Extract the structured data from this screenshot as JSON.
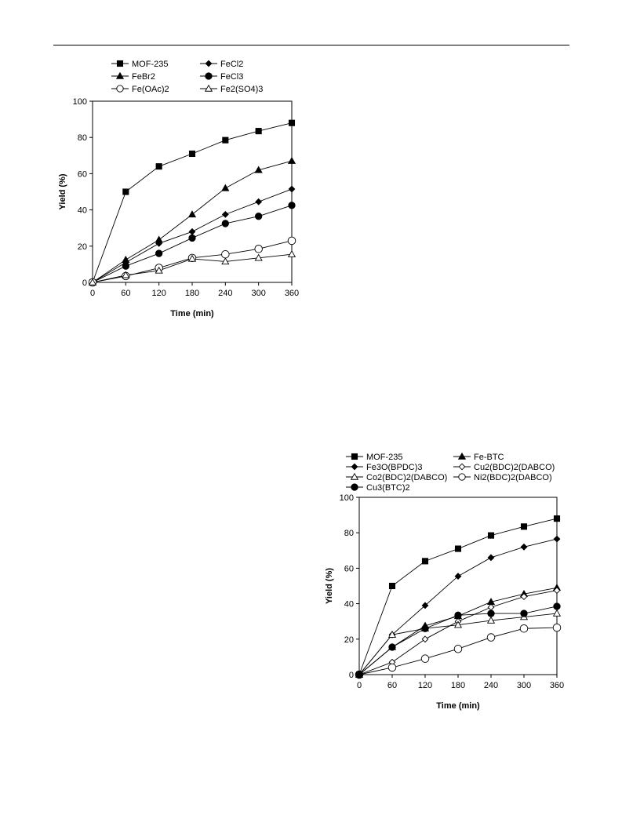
{
  "chart_data": [
    {
      "type": "line",
      "xlabel": "Time (min)",
      "ylabel": "Yield (%)",
      "xlim": [
        0,
        360
      ],
      "ylim": [
        0,
        100
      ],
      "xticks": [
        0,
        60,
        120,
        180,
        240,
        300,
        360
      ],
      "yticks": [
        0,
        20,
        40,
        60,
        80,
        100
      ],
      "grid": false,
      "legend_position": "top",
      "x": [
        0,
        60,
        120,
        180,
        240,
        300,
        360
      ],
      "series": [
        {
          "name": "MOF-235",
          "marker": "square-filled",
          "values": [
            0,
            50,
            64,
            71,
            78.5,
            83.5,
            88
          ]
        },
        {
          "name": "FeCl2",
          "marker": "diamond-filled",
          "values": [
            0,
            11,
            21.5,
            28,
            37.5,
            44.5,
            51.5
          ]
        },
        {
          "name": "FeBr2",
          "marker": "triangle-filled",
          "values": [
            0,
            12.5,
            23.5,
            37.5,
            52,
            62,
            67
          ]
        },
        {
          "name": "FeCl3",
          "marker": "circle-filled",
          "values": [
            0,
            9,
            16,
            24.5,
            32.5,
            36.5,
            42.5
          ]
        },
        {
          "name": "Fe(OAc)2",
          "marker": "circle-open",
          "values": [
            0,
            3.5,
            8,
            13.5,
            15.5,
            18.5,
            23
          ]
        },
        {
          "name": "Fe2(SO4)3",
          "marker": "triangle-open",
          "values": [
            0,
            4,
            6.5,
            13,
            11.5,
            13.5,
            15.5
          ]
        }
      ]
    },
    {
      "type": "line",
      "xlabel": "Time (min)",
      "ylabel": "Yield (%)",
      "xlim": [
        0,
        360
      ],
      "ylim": [
        0,
        100
      ],
      "xticks": [
        0,
        60,
        120,
        180,
        240,
        300,
        360
      ],
      "yticks": [
        0,
        20,
        40,
        60,
        80,
        100
      ],
      "grid": false,
      "legend_position": "top",
      "x": [
        0,
        60,
        120,
        180,
        240,
        300,
        360
      ],
      "series": [
        {
          "name": "MOF-235",
          "marker": "square-filled",
          "values": [
            0,
            50,
            64,
            71,
            78.5,
            83.5,
            88
          ]
        },
        {
          "name": "Fe-BTC",
          "marker": "triangle-filled",
          "values": [
            0,
            15.5,
            27.5,
            33,
            41,
            45.5,
            49
          ]
        },
        {
          "name": "Fe3O(BPDC)3",
          "marker": "diamond-filled",
          "values": [
            0,
            22.5,
            39,
            55.5,
            66,
            72,
            76.5
          ]
        },
        {
          "name": "Cu2(BDC)2(DABCO)",
          "marker": "diamond-open",
          "values": [
            0,
            7,
            20,
            30,
            38,
            44,
            47.5
          ]
        },
        {
          "name": "Co2(BDC)2(DABCO)",
          "marker": "triangle-open",
          "values": [
            0,
            22.5,
            26,
            28,
            30.5,
            32.5,
            34.5
          ]
        },
        {
          "name": "Ni2(BDC)2(DABCO)",
          "marker": "circle-open",
          "values": [
            0,
            4,
            9,
            14.5,
            21,
            26,
            26.5
          ]
        },
        {
          "name": "Cu3(BTC)2",
          "marker": "circle-filled",
          "values": [
            0,
            15.5,
            26,
            33.5,
            34.5,
            34.5,
            38.5
          ]
        }
      ]
    }
  ]
}
